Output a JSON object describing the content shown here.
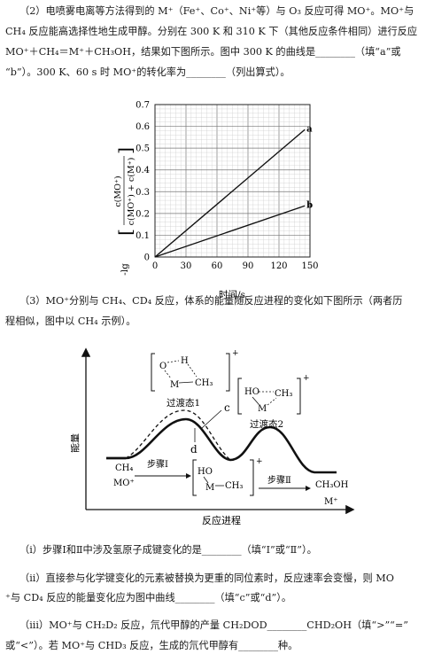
{
  "q2": {
    "line1": "（2）电喷雾电离等方法得到的 M⁺（Fe⁺、Co⁺、Ni⁺等）与 O₃ 反应可得 MO⁺。MO⁺与",
    "line2": "CH₄ 反应能高选择性地生成甲醇。分别在 300 K 和 310 K 下（其他反应条件相同）进行反应",
    "line3": "MO⁺＋CH₄＝M⁺＋CH₃OH，结果如下图所示。图中 300 K 的曲线是________（填“a”或",
    "line4": "“b”）。300 K、60 s 时 MO⁺的转化率为________（列出算式）。"
  },
  "chart_data": {
    "type": "line",
    "xlabel": "时间/s",
    "ylabel": "-lg[c(MO⁺) / (c(MO⁺)+c(M⁺))]",
    "ylabel_prefix": "-lg",
    "ylabel_num": "c(MO⁺)",
    "ylabel_den": "c(MO⁺) + c(M⁺)",
    "xlim": [
      0,
      150
    ],
    "ylim": [
      0,
      0.7
    ],
    "xticks": [
      "0",
      "30",
      "60",
      "90",
      "120",
      "150"
    ],
    "yticks": [
      "0",
      "0.1",
      "0.2",
      "0.3",
      "0.4",
      "0.5",
      "0.6",
      "0.7"
    ],
    "grid": true,
    "series": [
      {
        "name": "a",
        "x": [
          0,
          145
        ],
        "y": [
          0,
          0.585
        ]
      },
      {
        "name": "b",
        "x": [
          0,
          145
        ],
        "y": [
          0,
          0.235
        ]
      }
    ]
  },
  "q3": {
    "line1": "（3）MO⁺分别与 CH₄、CD₄ 反应，体系的能量随反应进程的变化如下图所示（两者历",
    "line2": "程相似，图中以 CH₄ 示例）。"
  },
  "energy_diagram": {
    "ylabel": "能量",
    "xlabel": "反应进程",
    "ts1_label": "过渡态1",
    "ts2_label": "过渡态2",
    "ts1_atoms": [
      "O",
      "H",
      "M",
      "CH₃"
    ],
    "ts2_atoms": [
      "HO",
      "CH₃",
      "M"
    ],
    "int_atoms": [
      "HO",
      "M",
      "CH₃"
    ],
    "curve_c": "c",
    "curve_d": "d",
    "reactant_1": "CH₄",
    "reactant_2": "MO⁺",
    "step1": "步骤Ⅰ",
    "step2": "步骤Ⅱ",
    "product_1": "CH₃OH",
    "product_2": "M⁺",
    "plus": "+"
  },
  "q3_i": "（i）步骤Ⅰ和Ⅱ中涉及氢原子成键变化的是________（填“Ⅰ”或“Ⅱ”）。",
  "q3_ii": {
    "line1": "（ii）直接参与化学键变化的元素被替换为更重的同位素时，反应速率会变慢，则 MO",
    "line2": "⁺与 CD₄ 反应的能量变化应为图中曲线________（填“c”或“d”）。"
  },
  "q3_iii": {
    "line1": "（iii）MO⁺与 CH₂D₂ 反应，氘代甲醇的产量 CH₂DOD________CHD₂OH（填“>”“=”",
    "line2": "或“<”）。若 MO⁺与 CHD₃ 反应，生成的氘代甲醇有________种。"
  }
}
